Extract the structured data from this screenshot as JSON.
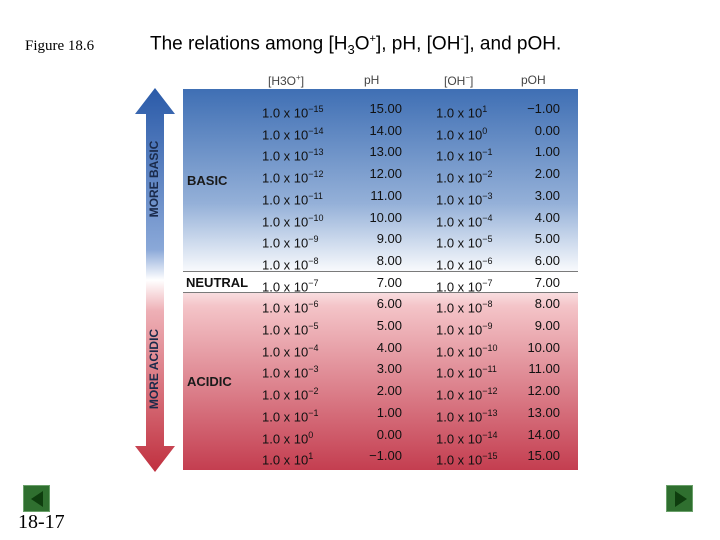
{
  "figure_label": "Figure 18.6",
  "title": {
    "text_a": "The relations among [H",
    "sub_3": "3",
    "text_b": "O",
    "sup_plus": "+",
    "text_c": "], pH, [OH",
    "sup_minus": "-",
    "text_d": "], and pOH."
  },
  "page_number": "18-17",
  "nav": {
    "prev": "previous-slide",
    "next": "next-slide"
  },
  "headers": {
    "h3o": {
      "base": "[H3O",
      "sup": "+",
      "close": "]"
    },
    "ph": "pH",
    "oh": {
      "base": "[OH",
      "sup": "−",
      "close": "]"
    },
    "poh": "pOH"
  },
  "labels": {
    "more_basic": "MORE BASIC",
    "more_acidic": "MORE ACIDIC",
    "basic": "BASIC",
    "neutral": "NEUTRAL",
    "acidic": "ACIDIC"
  },
  "colors": {
    "basic_blue": "#3f6fb4",
    "acidic_red": "#c43e50",
    "arrow_blue": "#2a5aa8",
    "arrow_red": "#c0303f"
  },
  "rows": [
    {
      "h3o_base": "1.0 x 10",
      "h3o_exp": "−15",
      "ph": "15.00",
      "oh_base": "1.0 x 10",
      "oh_exp": "1",
      "poh": "−1.00"
    },
    {
      "h3o_base": "1.0 x 10",
      "h3o_exp": "−14",
      "ph": "14.00",
      "oh_base": "1.0 x 10",
      "oh_exp": "0",
      "poh": "0.00"
    },
    {
      "h3o_base": "1.0 x 10",
      "h3o_exp": "−13",
      "ph": "13.00",
      "oh_base": "1.0 x 10",
      "oh_exp": "−1",
      "poh": "1.00"
    },
    {
      "h3o_base": "1.0 x 10",
      "h3o_exp": "−12",
      "ph": "12.00",
      "oh_base": "1.0 x 10",
      "oh_exp": "−2",
      "poh": "2.00"
    },
    {
      "h3o_base": "1.0 x 10",
      "h3o_exp": "−11",
      "ph": "11.00",
      "oh_base": "1.0 x 10",
      "oh_exp": "−3",
      "poh": "3.00"
    },
    {
      "h3o_base": "1.0 x 10",
      "h3o_exp": "−10",
      "ph": "10.00",
      "oh_base": "1.0 x 10",
      "oh_exp": "−4",
      "poh": "4.00"
    },
    {
      "h3o_base": "1.0 x 10",
      "h3o_exp": "−9",
      "ph": "9.00",
      "oh_base": "1.0 x 10",
      "oh_exp": "−5",
      "poh": "5.00"
    },
    {
      "h3o_base": "1.0 x 10",
      "h3o_exp": "−8",
      "ph": "8.00",
      "oh_base": "1.0 x 10",
      "oh_exp": "−6",
      "poh": "6.00"
    },
    {
      "h3o_base": "1.0 x 10",
      "h3o_exp": "−7",
      "ph": "7.00",
      "oh_base": "1.0 x 10",
      "oh_exp": "−7",
      "poh": "7.00"
    },
    {
      "h3o_base": "1.0 x 10",
      "h3o_exp": "−6",
      "ph": "6.00",
      "oh_base": "1.0 x 10",
      "oh_exp": "−8",
      "poh": "8.00"
    },
    {
      "h3o_base": "1.0 x 10",
      "h3o_exp": "−5",
      "ph": "5.00",
      "oh_base": "1.0 x 10",
      "oh_exp": "−9",
      "poh": "9.00"
    },
    {
      "h3o_base": "1.0 x 10",
      "h3o_exp": "−4",
      "ph": "4.00",
      "oh_base": "1.0 x 10",
      "oh_exp": "−10",
      "poh": "10.00"
    },
    {
      "h3o_base": "1.0 x 10",
      "h3o_exp": "−3",
      "ph": "3.00",
      "oh_base": "1.0 x 10",
      "oh_exp": "−11",
      "poh": "11.00"
    },
    {
      "h3o_base": "1.0 x 10",
      "h3o_exp": "−2",
      "ph": "2.00",
      "oh_base": "1.0 x 10",
      "oh_exp": "−12",
      "poh": "12.00"
    },
    {
      "h3o_base": "1.0 x 10",
      "h3o_exp": "−1",
      "ph": "1.00",
      "oh_base": "1.0 x 10",
      "oh_exp": "−13",
      "poh": "13.00"
    },
    {
      "h3o_base": "1.0 x 10",
      "h3o_exp": "0",
      "ph": "0.00",
      "oh_base": "1.0 x 10",
      "oh_exp": "−14",
      "poh": "14.00"
    },
    {
      "h3o_base": "1.0 x 10",
      "h3o_exp": "1",
      "ph": "−1.00",
      "oh_base": "1.0 x 10",
      "oh_exp": "−15",
      "poh": "15.00"
    }
  ]
}
